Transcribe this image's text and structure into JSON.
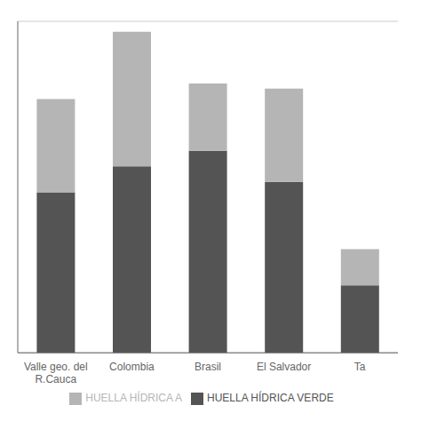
{
  "chart_data": {
    "type": "bar",
    "stacked": true,
    "categories": [
      "Valle geo. del\nR.Cauca",
      "Colombia",
      "Brasil",
      "El Salvador",
      "Ta"
    ],
    "series": [
      {
        "name": "HUELLA HÍDRICA VERDE",
        "color": "#545454",
        "values": [
          155,
          180,
          195,
          165,
          65
        ]
      },
      {
        "name": "HUELLA HÍDRICA A",
        "color": "#b5b5b5",
        "values": [
          90,
          130,
          65,
          90,
          35
        ]
      }
    ],
    "ylim": [
      0,
      320
    ],
    "yticks": [
      0,
      50,
      100,
      150,
      200,
      250,
      300
    ],
    "grid": true,
    "legend": "bottom",
    "tick_labels": "x"
  }
}
